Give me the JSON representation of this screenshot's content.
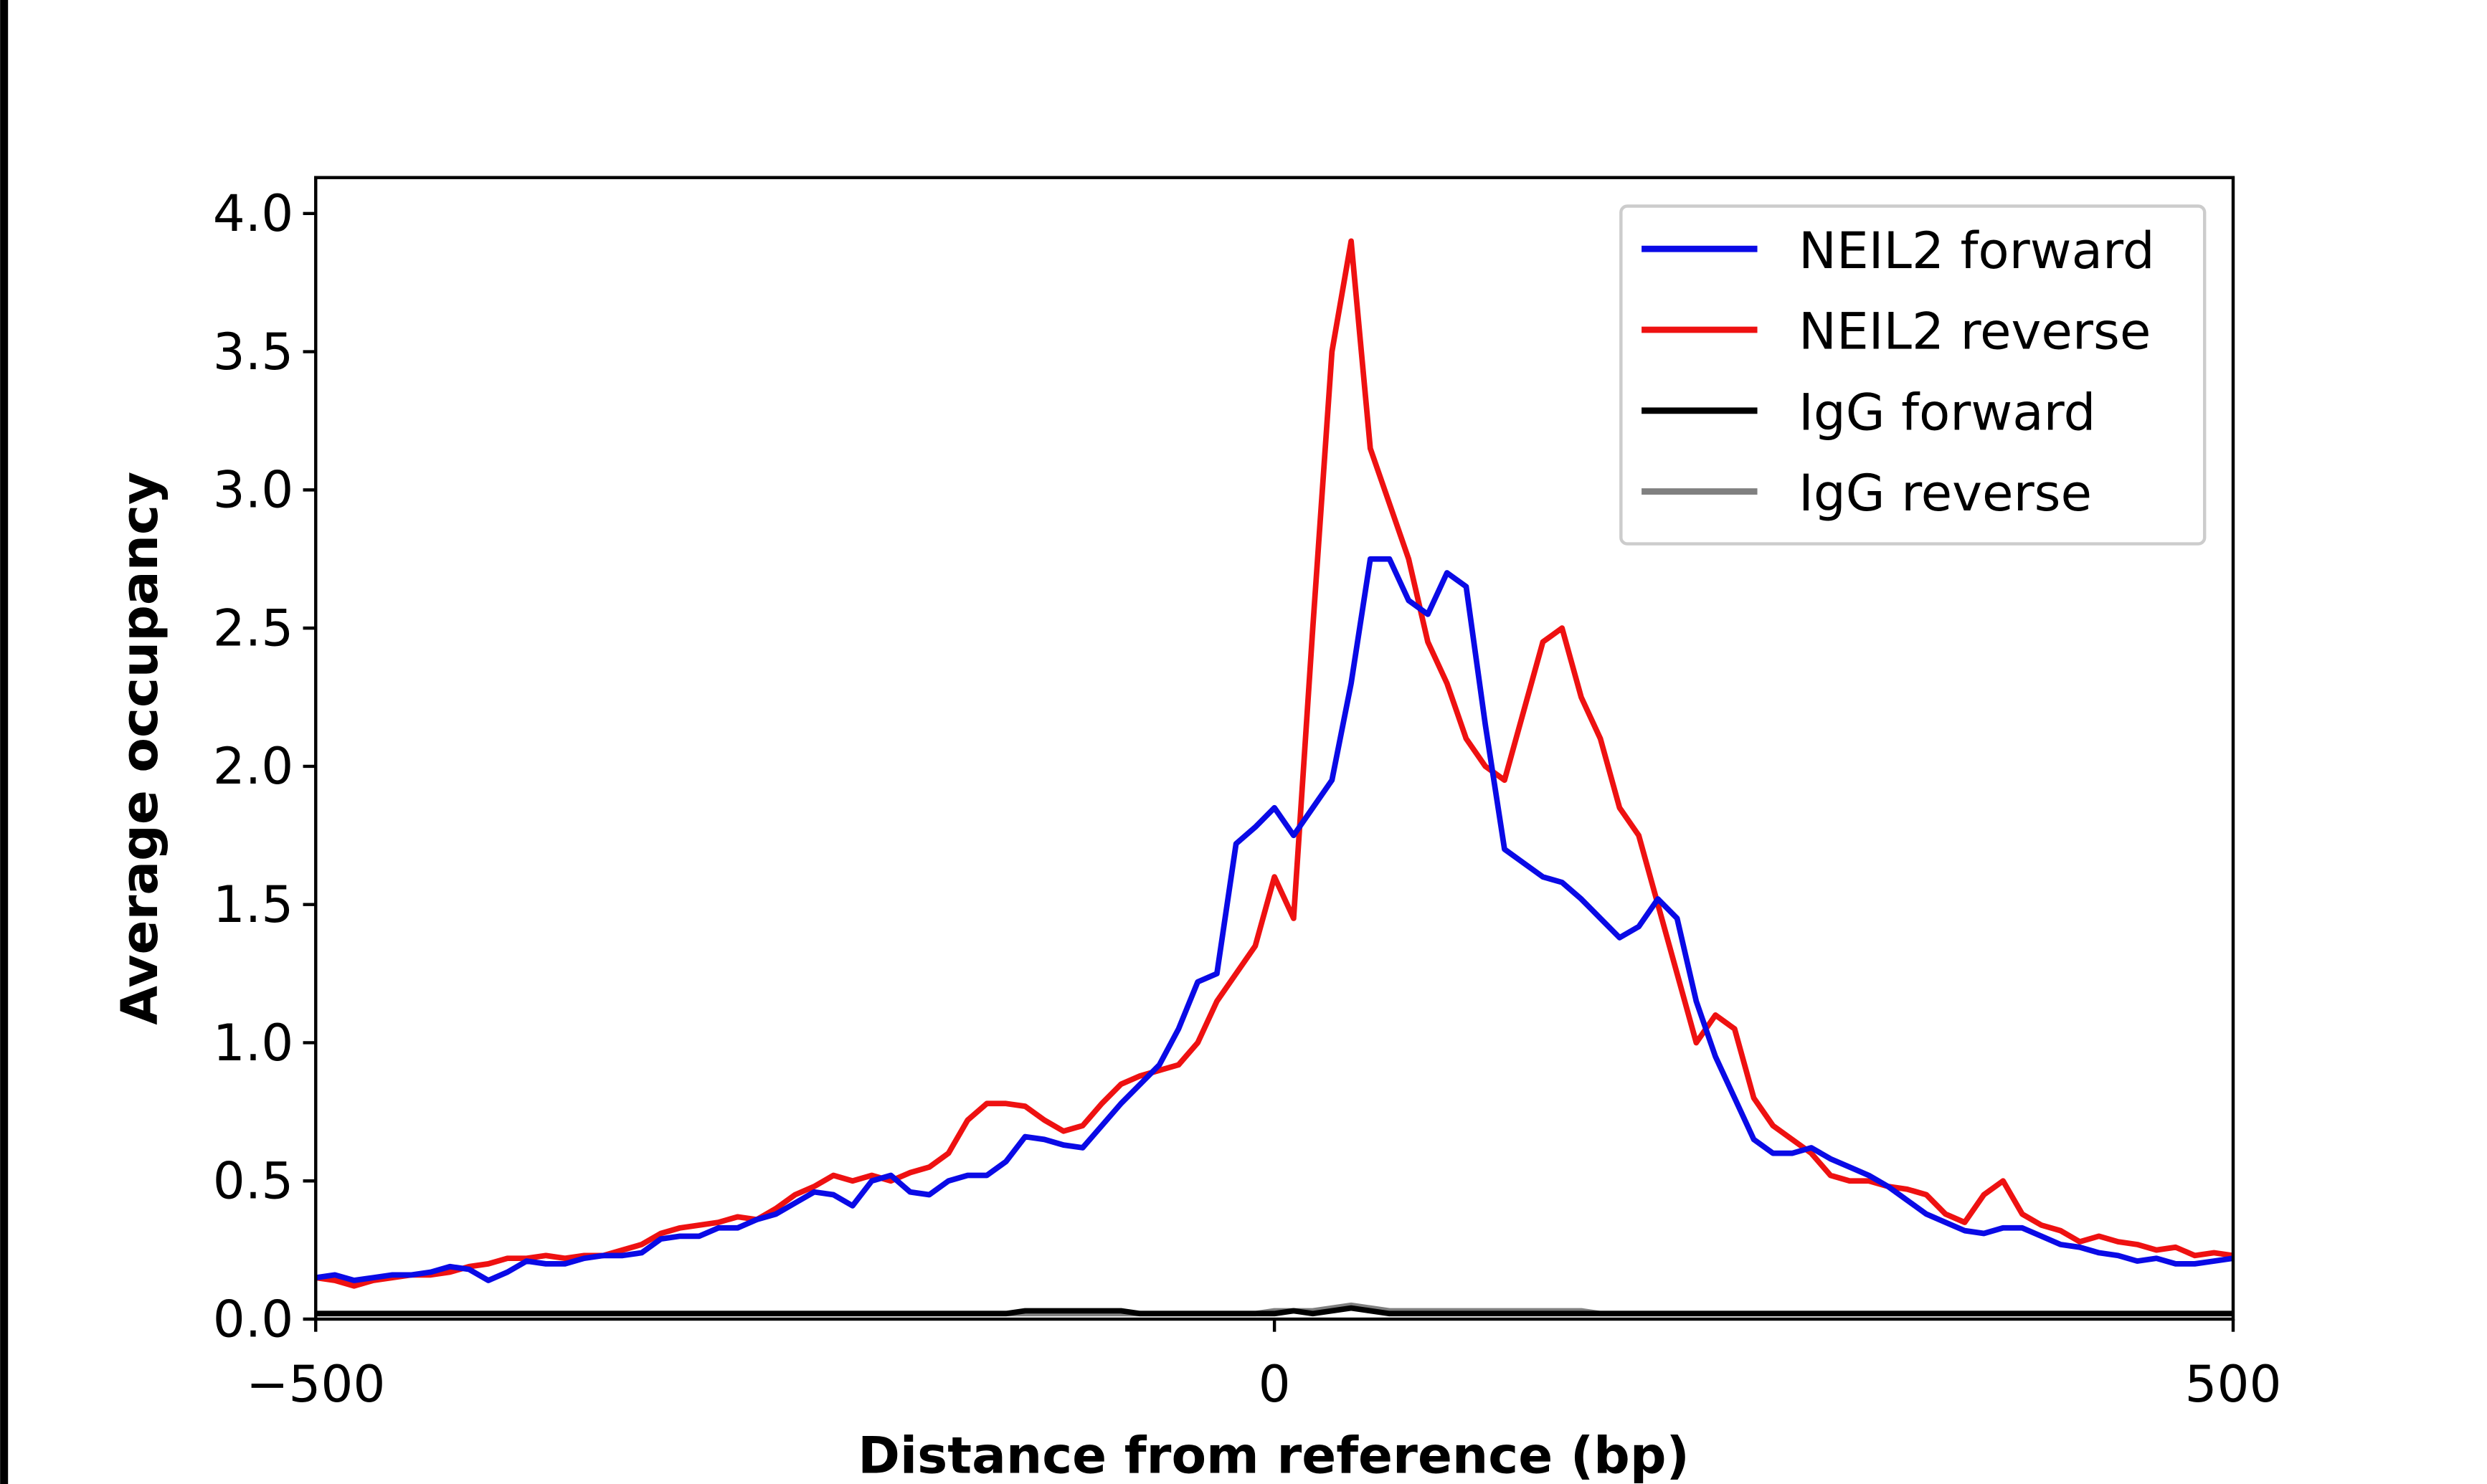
{
  "chart_data": {
    "type": "line",
    "x_label": "Distance from reference (bp)",
    "y_label": "Average occupancy",
    "x": [
      -500,
      -490,
      -480,
      -470,
      -460,
      -450,
      -440,
      -430,
      -420,
      -410,
      -400,
      -390,
      -380,
      -370,
      -360,
      -350,
      -340,
      -330,
      -320,
      -310,
      -300,
      -290,
      -280,
      -270,
      -260,
      -250,
      -240,
      -230,
      -220,
      -210,
      -200,
      -190,
      -180,
      -170,
      -160,
      -150,
      -140,
      -130,
      -120,
      -110,
      -100,
      -90,
      -80,
      -70,
      -60,
      -50,
      -40,
      -30,
      -20,
      -10,
      0,
      10,
      20,
      30,
      40,
      50,
      60,
      70,
      80,
      90,
      100,
      110,
      120,
      130,
      140,
      150,
      160,
      170,
      180,
      190,
      200,
      210,
      220,
      230,
      240,
      250,
      260,
      270,
      280,
      290,
      300,
      310,
      320,
      330,
      340,
      350,
      360,
      370,
      380,
      390,
      400,
      410,
      420,
      430,
      440,
      450,
      460,
      470,
      480,
      490,
      500
    ],
    "series": [
      {
        "name": "NEIL2 forward",
        "color": "#0a0ae6",
        "values": [
          0.15,
          0.16,
          0.14,
          0.15,
          0.16,
          0.16,
          0.17,
          0.19,
          0.18,
          0.14,
          0.17,
          0.21,
          0.2,
          0.2,
          0.22,
          0.23,
          0.23,
          0.24,
          0.29,
          0.3,
          0.3,
          0.33,
          0.33,
          0.36,
          0.38,
          0.42,
          0.46,
          0.45,
          0.41,
          0.5,
          0.52,
          0.46,
          0.45,
          0.5,
          0.52,
          0.52,
          0.57,
          0.66,
          0.65,
          0.63,
          0.62,
          0.7,
          0.78,
          0.85,
          0.92,
          1.05,
          1.22,
          1.25,
          1.72,
          1.78,
          1.85,
          1.75,
          1.85,
          1.95,
          2.3,
          2.75,
          2.75,
          2.6,
          2.55,
          2.7,
          2.65,
          2.15,
          1.7,
          1.65,
          1.6,
          1.58,
          1.52,
          1.45,
          1.38,
          1.42,
          1.52,
          1.45,
          1.15,
          0.95,
          0.8,
          0.65,
          0.6,
          0.6,
          0.62,
          0.58,
          0.55,
          0.52,
          0.48,
          0.43,
          0.38,
          0.35,
          0.32,
          0.31,
          0.33,
          0.33,
          0.3,
          0.27,
          0.26,
          0.24,
          0.23,
          0.21,
          0.22,
          0.2,
          0.2,
          0.21,
          0.22
        ]
      },
      {
        "name": "NEIL2 reverse",
        "color": "#ee1111",
        "values": [
          0.15,
          0.14,
          0.12,
          0.14,
          0.15,
          0.16,
          0.16,
          0.17,
          0.19,
          0.2,
          0.22,
          0.22,
          0.23,
          0.22,
          0.23,
          0.23,
          0.25,
          0.27,
          0.31,
          0.33,
          0.34,
          0.35,
          0.37,
          0.36,
          0.4,
          0.45,
          0.48,
          0.52,
          0.5,
          0.52,
          0.5,
          0.53,
          0.55,
          0.6,
          0.72,
          0.78,
          0.78,
          0.77,
          0.72,
          0.68,
          0.7,
          0.78,
          0.85,
          0.88,
          0.9,
          0.92,
          1.0,
          1.15,
          1.25,
          1.35,
          1.6,
          1.45,
          2.5,
          3.5,
          3.9,
          3.15,
          2.95,
          2.75,
          2.45,
          2.3,
          2.1,
          2.0,
          1.95,
          2.2,
          2.45,
          2.5,
          2.25,
          2.1,
          1.85,
          1.75,
          1.5,
          1.25,
          1.0,
          1.1,
          1.05,
          0.8,
          0.7,
          0.65,
          0.6,
          0.52,
          0.5,
          0.5,
          0.48,
          0.47,
          0.45,
          0.38,
          0.35,
          0.45,
          0.5,
          0.38,
          0.34,
          0.32,
          0.28,
          0.3,
          0.28,
          0.27,
          0.25,
          0.26,
          0.23,
          0.24,
          0.23
        ]
      },
      {
        "name": "IgG forward",
        "color": "#000000",
        "values": [
          0.02,
          0.02,
          0.02,
          0.02,
          0.02,
          0.02,
          0.02,
          0.02,
          0.02,
          0.02,
          0.02,
          0.02,
          0.02,
          0.02,
          0.02,
          0.02,
          0.02,
          0.02,
          0.02,
          0.02,
          0.02,
          0.02,
          0.02,
          0.02,
          0.02,
          0.02,
          0.02,
          0.02,
          0.02,
          0.02,
          0.02,
          0.02,
          0.02,
          0.02,
          0.02,
          0.02,
          0.02,
          0.03,
          0.03,
          0.03,
          0.03,
          0.03,
          0.03,
          0.02,
          0.02,
          0.02,
          0.02,
          0.02,
          0.02,
          0.02,
          0.02,
          0.03,
          0.02,
          0.03,
          0.04,
          0.03,
          0.02,
          0.02,
          0.02,
          0.02,
          0.02,
          0.02,
          0.02,
          0.02,
          0.02,
          0.02,
          0.02,
          0.02,
          0.02,
          0.02,
          0.02,
          0.02,
          0.02,
          0.02,
          0.02,
          0.02,
          0.02,
          0.02,
          0.02,
          0.02,
          0.02,
          0.02,
          0.02,
          0.02,
          0.02,
          0.02,
          0.02,
          0.02,
          0.02,
          0.02,
          0.02,
          0.02,
          0.02,
          0.02,
          0.02,
          0.02,
          0.02,
          0.02,
          0.02,
          0.02,
          0.02
        ]
      },
      {
        "name": "IgG reverse",
        "color": "#808080",
        "values": [
          0.02,
          0.02,
          0.02,
          0.02,
          0.02,
          0.02,
          0.02,
          0.02,
          0.02,
          0.02,
          0.02,
          0.02,
          0.02,
          0.02,
          0.02,
          0.02,
          0.02,
          0.02,
          0.02,
          0.02,
          0.02,
          0.02,
          0.02,
          0.02,
          0.02,
          0.02,
          0.02,
          0.02,
          0.02,
          0.02,
          0.02,
          0.02,
          0.02,
          0.02,
          0.02,
          0.02,
          0.02,
          0.02,
          0.02,
          0.02,
          0.02,
          0.02,
          0.02,
          0.02,
          0.02,
          0.02,
          0.02,
          0.02,
          0.02,
          0.02,
          0.03,
          0.03,
          0.03,
          0.04,
          0.05,
          0.04,
          0.03,
          0.03,
          0.03,
          0.03,
          0.03,
          0.03,
          0.03,
          0.03,
          0.03,
          0.03,
          0.03,
          0.02,
          0.02,
          0.02,
          0.02,
          0.02,
          0.02,
          0.02,
          0.02,
          0.02,
          0.02,
          0.02,
          0.02,
          0.02,
          0.02,
          0.02,
          0.02,
          0.02,
          0.02,
          0.02,
          0.02,
          0.02,
          0.02,
          0.02,
          0.02,
          0.02,
          0.02,
          0.02,
          0.02,
          0.02,
          0.02,
          0.02,
          0.02,
          0.02,
          0.02
        ]
      }
    ],
    "xlim": [
      -500,
      500
    ],
    "xticks": [
      {
        "value": -500,
        "label": "−500"
      },
      0,
      500
    ],
    "ylim": [
      0,
      4.13
    ],
    "yticks": [
      {
        "value": 0,
        "label": "0.0"
      },
      0.5,
      {
        "value": 1,
        "label": "1.0"
      },
      1.5,
      {
        "value": 2,
        "label": "2.0"
      },
      2.5,
      {
        "value": 3,
        "label": "3.0"
      },
      3.5,
      {
        "value": 4,
        "label": "4.0"
      }
    ],
    "legend": "upper right"
  }
}
